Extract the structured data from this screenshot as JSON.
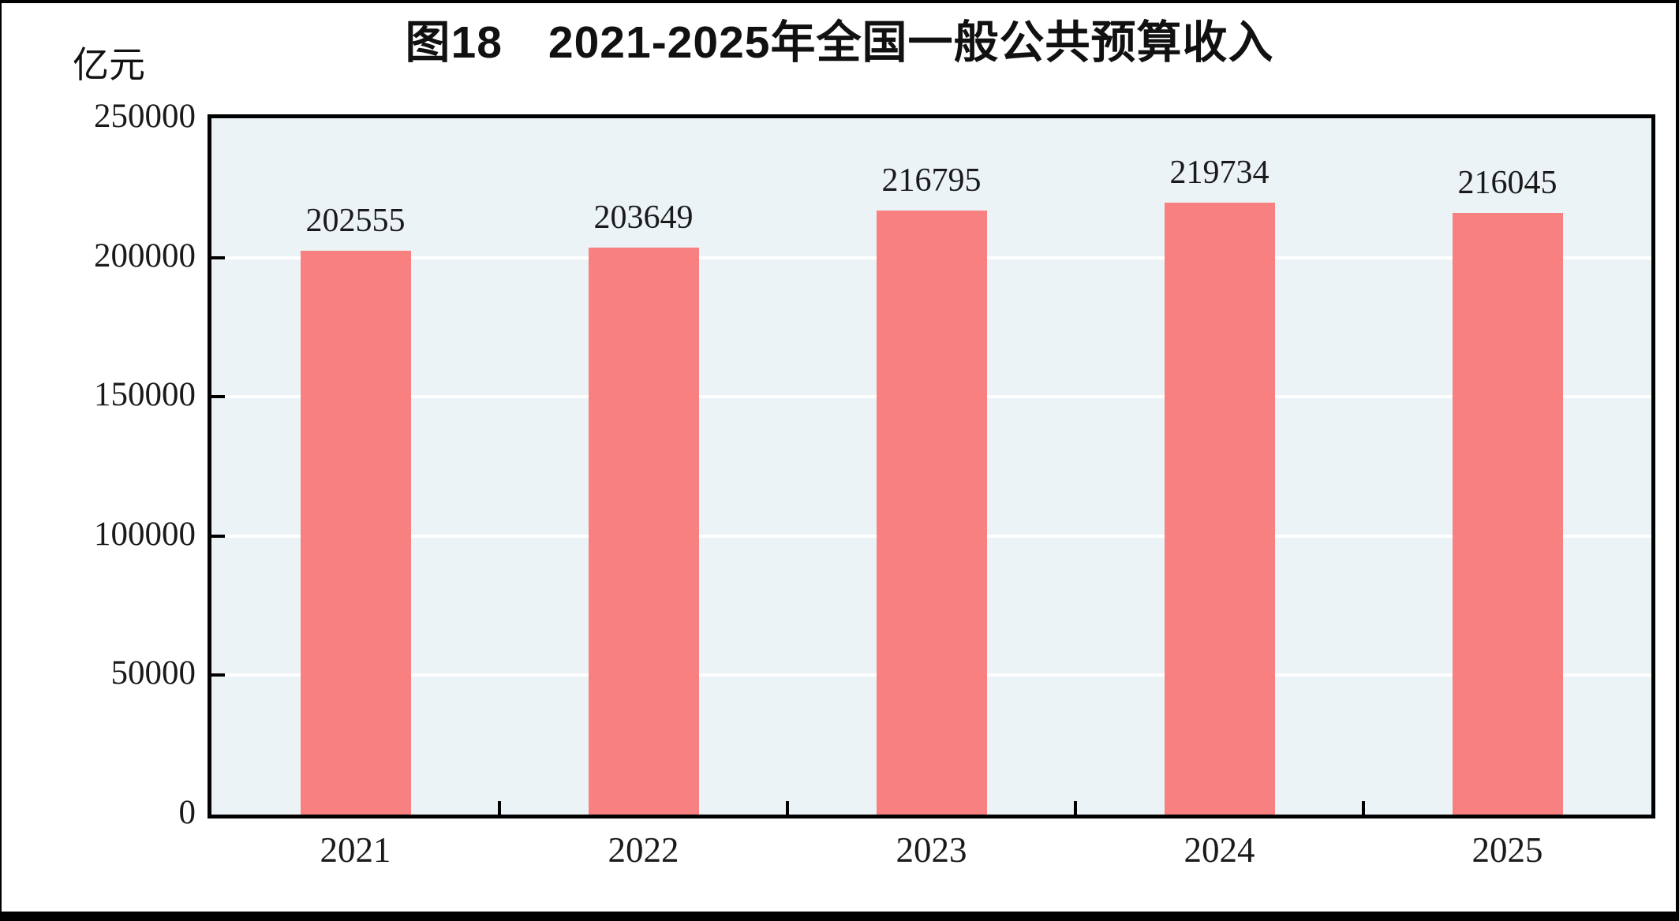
{
  "figure": {
    "title": "图18　2021-2025年全国一般公共预算收入",
    "unit_label": "亿元"
  },
  "chart_data": {
    "type": "bar",
    "title": "图18　2021-2025年全国一般公共预算收入",
    "ylabel": "亿元",
    "xlabel": "",
    "categories": [
      "2021",
      "2022",
      "2023",
      "2024",
      "2025"
    ],
    "values": [
      202555,
      203649,
      216795,
      219734,
      216045
    ],
    "data_labels": [
      "202555",
      "203649",
      "216795",
      "219734",
      "216045"
    ],
    "ylim": [
      0,
      250000
    ],
    "yticks": [
      0,
      50000,
      100000,
      150000,
      200000,
      250000
    ],
    "grid": true,
    "legend_position": "none",
    "colors": {
      "bar_fill": "#F88080",
      "plot_background": "#ECF3F7",
      "gridline": "#FFFFFF",
      "axis": "#000000",
      "text": "#1A1A1A"
    }
  }
}
